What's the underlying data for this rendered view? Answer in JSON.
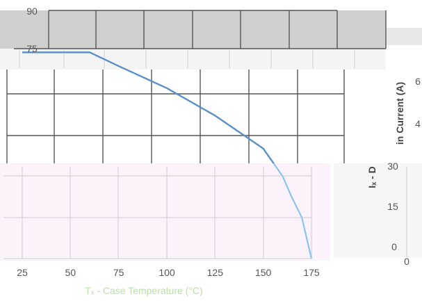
{
  "chart_data": [
    {
      "type": "line",
      "title": "",
      "xlabel": "Tₓ - Case Temperature (°C)",
      "ylabel": "Iₓ - Drain Current (A)",
      "x_tick_labels": [
        "25",
        "50",
        "75",
        "100",
        "125",
        "150",
        "175"
      ],
      "y_tick_labels_top": [
        "90",
        "75"
      ],
      "y_tick_labels_bottom": [
        "30",
        "15",
        "0"
      ],
      "right_panel_tick_labels": [
        "6",
        "4",
        "30",
        "15",
        "0",
        "0"
      ],
      "xlim": [
        25,
        175
      ],
      "ylim": [
        0,
        90
      ],
      "series": [
        {
          "name": "",
          "x": [
            25,
            50,
            60,
            75,
            100,
            125,
            150,
            160,
            165,
            170,
            175
          ],
          "y": [
            75,
            75,
            75,
            70,
            62,
            52,
            40,
            30,
            22,
            15,
            0
          ]
        }
      ],
      "colors": {
        "line_dark": "#5a8fc8",
        "line_light": "#8cc4ee",
        "grid": "#555555"
      }
    }
  ],
  "labels": {
    "xlabel_text": "Tₓ - Case Temperature (°C)",
    "ylabel_right": "in Current (A)",
    "ylabel_right2": "Iₓ - D"
  }
}
